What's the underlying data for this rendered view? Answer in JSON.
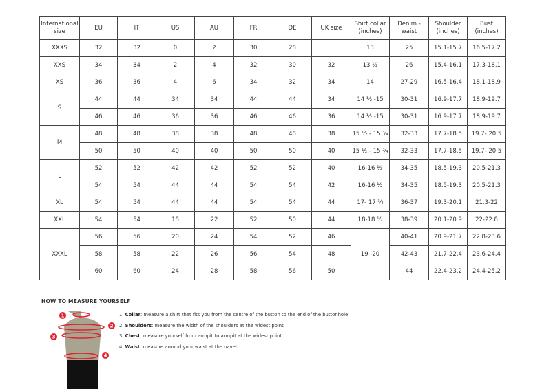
{
  "table": {
    "headers": [
      "International size",
      "EU",
      "IT",
      "US",
      "AU",
      "FR",
      "DE",
      "UK size",
      "Shirt collar (inches)",
      "Denim - waist",
      "Shoulder (inches)",
      "Bust (inches)"
    ],
    "groups": [
      {
        "size": "XXXS",
        "rows": [
          [
            "32",
            "32",
            "0",
            "2",
            "30",
            "28",
            "",
            "13",
            "25",
            "15.1-15.7",
            "16.5-17.2"
          ]
        ]
      },
      {
        "size": "XXS",
        "rows": [
          [
            "34",
            "34",
            "2",
            "4",
            "32",
            "30",
            "32",
            "13 ½",
            "26",
            "15.4-16.1",
            "17.3-18.1"
          ]
        ]
      },
      {
        "size": "XS",
        "rows": [
          [
            "36",
            "36",
            "4",
            "6",
            "34",
            "32",
            "34",
            "14",
            "27-29",
            "16.5-16.4",
            "18.1-18.9"
          ]
        ]
      },
      {
        "size": "S",
        "rows": [
          [
            "44",
            "44",
            "34",
            "34",
            "44",
            "44",
            "34",
            "14 ½ -15",
            "30-31",
            "16.9-17.7",
            "18.9-19.7"
          ],
          [
            "46",
            "46",
            "36",
            "36",
            "46",
            "46",
            "36",
            "14 ½ -15",
            "30-31",
            "16.9-17.7",
            "18.9-19.7"
          ]
        ]
      },
      {
        "size": "M",
        "rows": [
          [
            "48",
            "48",
            "38",
            "38",
            "48",
            "48",
            "38",
            "15 ½ - 15 ¾",
            "32-33",
            "17.7-18.5",
            "19.7- 20.5"
          ],
          [
            "50",
            "50",
            "40",
            "40",
            "50",
            "50",
            "40",
            "15 ½ - 15 ¾",
            "32-33",
            "17.7-18.5",
            "19.7- 20.5"
          ]
        ]
      },
      {
        "size": "L",
        "rows": [
          [
            "52",
            "52",
            "42",
            "42",
            "52",
            "52",
            "40",
            "16-16 ½",
            "34-35",
            "18.5-19.3",
            "20.5-21.3"
          ],
          [
            "54",
            "54",
            "44",
            "44",
            "54",
            "54",
            "42",
            "16-16 ½",
            "34-35",
            "18.5-19.3",
            "20.5-21.3"
          ]
        ]
      },
      {
        "size": "XL",
        "rows": [
          [
            "54",
            "54",
            "44",
            "44",
            "54",
            "54",
            "44",
            "17- 17 ¾",
            "36-37",
            "19.3-20.1",
            "21.3-22"
          ]
        ]
      },
      {
        "size": "XXL",
        "rows": [
          [
            "54",
            "54",
            "18",
            "22",
            "52",
            "50",
            "44",
            "18-18 ½",
            "38-39",
            "20.1-20.9",
            "22-22.8"
          ]
        ]
      },
      {
        "size": "XXXL",
        "collar": "19 -20",
        "rows": [
          [
            "56",
            "56",
            "20",
            "24",
            "54",
            "52",
            "46",
            "",
            "40-41",
            "20.9-21.7",
            "22.8-23.6"
          ],
          [
            "58",
            "58",
            "22",
            "26",
            "56",
            "54",
            "48",
            "",
            "42-43",
            "21.7-22.4",
            "23.6-24.4"
          ],
          [
            "60",
            "60",
            "24",
            "28",
            "58",
            "56",
            "50",
            "",
            "44",
            "22.4-23.2",
            "24.4-25.2"
          ]
        ]
      }
    ]
  },
  "measure": {
    "title": "HOW TO MEASURE YOURSELF",
    "steps": [
      {
        "num": "1.",
        "term": "Collar",
        "text": ": measure a shirt that fits you from the centre of the button to the end of the buttonhole"
      },
      {
        "num": "2.",
        "term": "Shoulders",
        "text": ": measure the width of the shoulders at the widest point"
      },
      {
        "num": "3.",
        "term": "Chest",
        "text": ": measure yourself from armpit to armpit at the widest point"
      },
      {
        "num": "4.",
        "term": "Waist",
        "text": ": measure around your waist at the navel"
      }
    ],
    "markers": [
      "1",
      "2",
      "3",
      "4"
    ],
    "colors": {
      "accent": "#e0222e",
      "body": "#a8a48f"
    }
  }
}
